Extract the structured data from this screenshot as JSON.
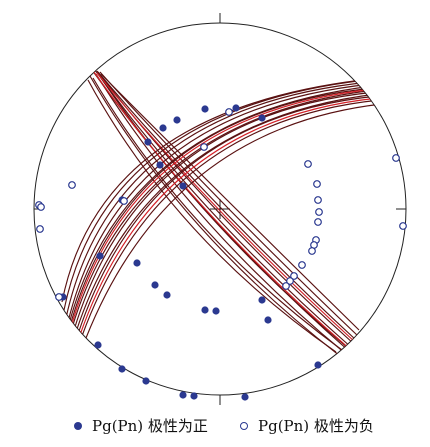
{
  "figure": {
    "colors": {
      "primitive": "#222222",
      "great_circle_dark": "#5a1212",
      "great_circle_red": "#d42027",
      "pole": "#2b3990"
    },
    "legend": [
      {
        "marker": "filled-circle",
        "label": "Pg(Pn) 极性为正"
      },
      {
        "marker": "hollow-circle",
        "label": "Pg(Pn) 极性为负"
      }
    ],
    "great_circles": [
      {
        "set": "NW-SE",
        "color": "dark",
        "count": 11
      },
      {
        "set": "NW-SE",
        "color": "red",
        "count": 2
      },
      {
        "set": "NE-SW",
        "color": "dark",
        "count": 12
      },
      {
        "set": "NE-SW",
        "color": "red",
        "count": 2
      }
    ],
    "polarity_poles": {
      "positive_count": 25,
      "negative_count": 22
    }
  }
}
